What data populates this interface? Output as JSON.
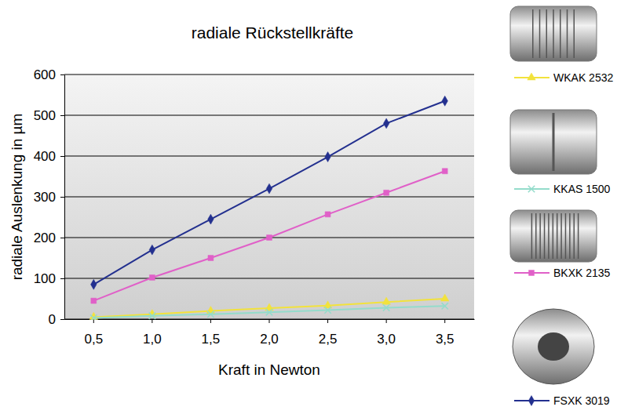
{
  "chart_data": {
    "type": "line",
    "title": "radiale Rückstellkräfte",
    "x_label": "Kraft in Newton",
    "y_label": "radiale Auslenkung in µm",
    "categories": [
      "0,5",
      "1,0",
      "1,5",
      "2,0",
      "2,5",
      "3,0",
      "3,5"
    ],
    "series": [
      {
        "name": "WKAK 2532",
        "color": "#f2e23c",
        "marker": "triangle",
        "values": [
          5,
          12,
          20,
          27,
          33,
          42,
          50
        ]
      },
      {
        "name": "KKAS 1500",
        "color": "#94dccb",
        "marker": "x",
        "values": [
          3,
          8,
          12,
          17,
          22,
          28,
          32
        ]
      },
      {
        "name": "BKXK 2135",
        "color": "#e060c8",
        "marker": "square",
        "values": [
          45,
          102,
          150,
          200,
          257,
          310,
          363
        ]
      },
      {
        "name": "FSXK 3019",
        "color": "#23308f",
        "marker": "diamond",
        "values": [
          85,
          170,
          245,
          320,
          398,
          480,
          535
        ]
      }
    ],
    "ylim": [
      0,
      600
    ],
    "yticks": [
      0,
      100,
      200,
      300,
      400,
      500,
      600
    ],
    "grid": true,
    "legend": "right"
  }
}
